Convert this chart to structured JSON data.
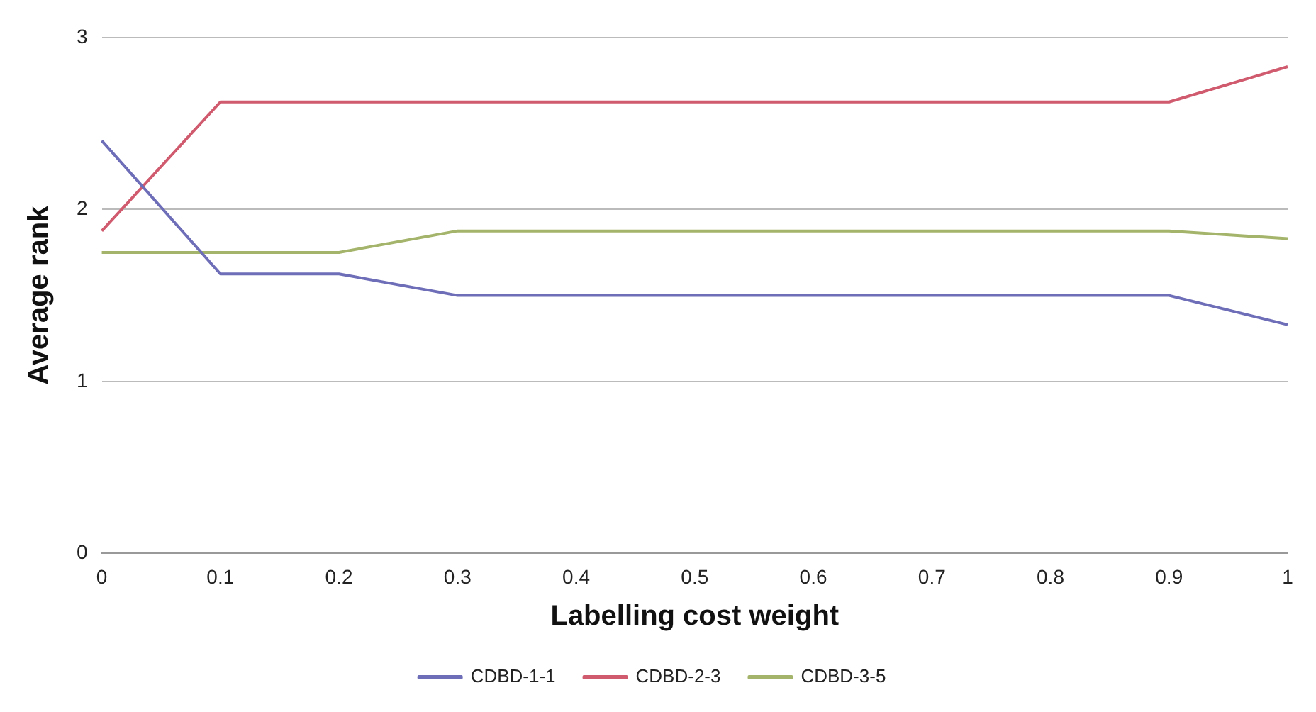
{
  "chart_data": {
    "type": "line",
    "xlabel": "Labelling cost weight",
    "ylabel": "Average rank",
    "categories": [
      "0",
      "0.1",
      "0.2",
      "0.3",
      "0.4",
      "0.5",
      "0.6",
      "0.7",
      "0.8",
      "0.9",
      "1"
    ],
    "series": [
      {
        "name": "CDBD-1-1",
        "color": "#6e6eb8",
        "values": [
          2.4,
          1.625,
          1.625,
          1.5,
          1.5,
          1.5,
          1.5,
          1.5,
          1.5,
          1.5,
          1.33
        ]
      },
      {
        "name": "CDBD-2-3",
        "color": "#d05a6e",
        "values": [
          1.875,
          2.625,
          2.625,
          2.625,
          2.625,
          2.625,
          2.625,
          2.625,
          2.625,
          2.625,
          2.83
        ]
      },
      {
        "name": "CDBD-3-5",
        "color": "#a4b46a",
        "values": [
          1.75,
          1.75,
          1.75,
          1.875,
          1.875,
          1.875,
          1.875,
          1.875,
          1.875,
          1.875,
          1.83
        ]
      }
    ],
    "ylim": [
      0,
      3
    ],
    "yticks": [
      0,
      1,
      2,
      3
    ],
    "grid": "y",
    "legend": "bottom",
    "marker": "none",
    "line_style": "solid"
  }
}
